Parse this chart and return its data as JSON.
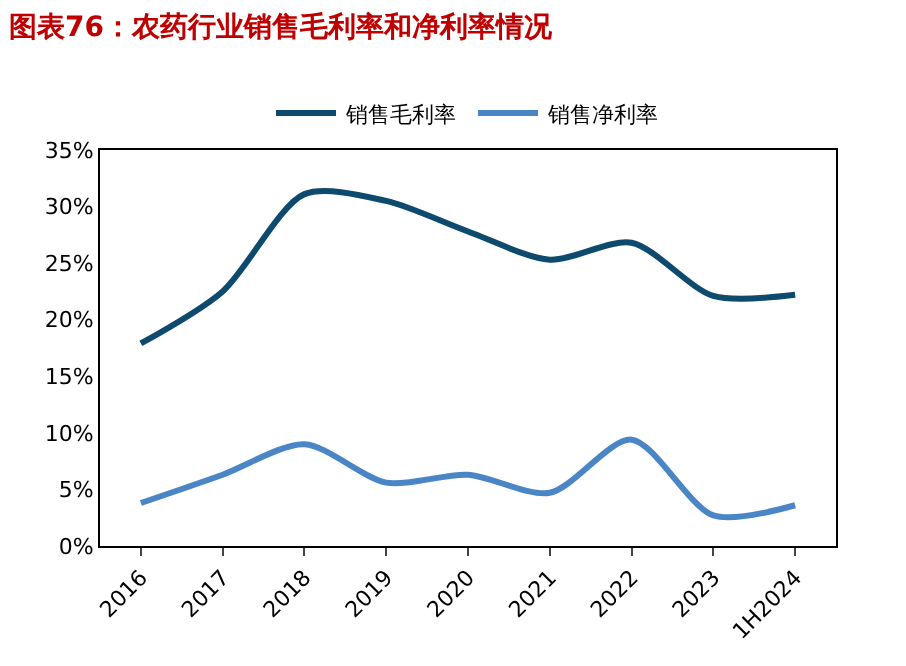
{
  "chart_data": {
    "type": "line",
    "title": "图表76：农药行业销售毛利率和净利率情况",
    "categories": [
      "2016",
      "2017",
      "2018",
      "2019",
      "2020",
      "2021",
      "2022",
      "2023",
      "1H2024"
    ],
    "series": [
      {
        "name": "销售毛利率",
        "color": "#0d4a6e",
        "values": [
          17.9,
          22.5,
          31.1,
          30.5,
          27.8,
          25.3,
          26.8,
          22.1,
          22.2
        ]
      },
      {
        "name": "销售净利率",
        "color": "#4a86c5",
        "values": [
          3.8,
          6.3,
          9.0,
          5.6,
          6.3,
          4.7,
          9.4,
          2.7,
          3.6
        ]
      }
    ],
    "ylim": [
      0,
      35
    ],
    "yticks": [
      {
        "value": 0,
        "label": "0%"
      },
      {
        "value": 5,
        "label": "5%"
      },
      {
        "value": 10,
        "label": "10%"
      },
      {
        "value": 15,
        "label": "15%"
      },
      {
        "value": 20,
        "label": "20%"
      },
      {
        "value": 25,
        "label": "25%"
      },
      {
        "value": 30,
        "label": "30%"
      },
      {
        "value": 35,
        "label": "35%"
      }
    ],
    "grid": false,
    "legend": "top",
    "marker": "none",
    "line_style": "solid"
  }
}
